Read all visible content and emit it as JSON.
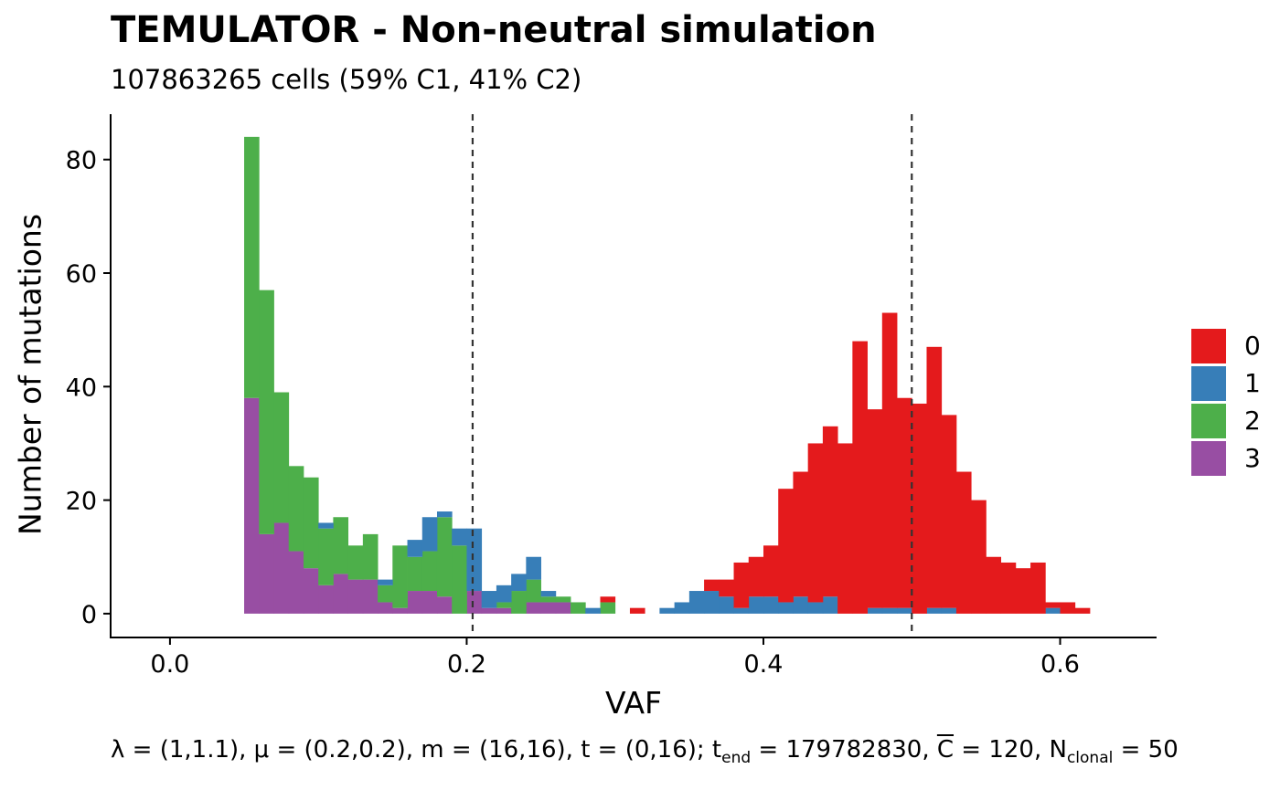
{
  "title": "TEMULATOR - Non-neutral simulation",
  "subtitle": "107863265 cells (59% C1, 41% C2)",
  "caption": {
    "part1": "λ = (1,1.1), μ = (0.2,0.2), m = (16,16), t = (0,16); t",
    "sub1": "end",
    "part2": " = 179782830, ",
    "cbar": "C",
    "part3": " = 120, N",
    "sub2": "clonal",
    "part4": " = 50"
  },
  "chart_data": {
    "type": "bar",
    "stacked": true,
    "xlabel": "VAF",
    "ylabel": "Number of mutations",
    "xlim": [
      -0.04,
      0.665
    ],
    "ylim": [
      -4.2,
      88
    ],
    "x_ticks": [
      0.0,
      0.2,
      0.4,
      0.6
    ],
    "x_tick_labels": [
      "0.0",
      "0.2",
      "0.4",
      "0.6"
    ],
    "y_ticks": [
      0,
      20,
      40,
      60,
      80
    ],
    "y_tick_labels": [
      "0",
      "20",
      "40",
      "60",
      "80"
    ],
    "bin_width": 0.01,
    "bin_starts": [
      0.05,
      0.06,
      0.07,
      0.08,
      0.09,
      0.1,
      0.11,
      0.12,
      0.13,
      0.14,
      0.15,
      0.16,
      0.17,
      0.18,
      0.19,
      0.2,
      0.21,
      0.22,
      0.23,
      0.24,
      0.25,
      0.26,
      0.27,
      0.28,
      0.29,
      0.3,
      0.31,
      0.32,
      0.33,
      0.34,
      0.35,
      0.36,
      0.37,
      0.38,
      0.39,
      0.4,
      0.41,
      0.42,
      0.43,
      0.44,
      0.45,
      0.46,
      0.47,
      0.48,
      0.49,
      0.5,
      0.51,
      0.52,
      0.53,
      0.54,
      0.55,
      0.56,
      0.57,
      0.58,
      0.59,
      0.6,
      0.61
    ],
    "series": [
      {
        "name": "3",
        "color": "#984EA3",
        "values": [
          38,
          14,
          16,
          11,
          8,
          5,
          7,
          6,
          6,
          2,
          1,
          4,
          4,
          3,
          0,
          4,
          1,
          1,
          0,
          2,
          2,
          2,
          0,
          0,
          0,
          0,
          0,
          0,
          0,
          0,
          0,
          0,
          0,
          0,
          0,
          0,
          0,
          0,
          0,
          0,
          0,
          0,
          0,
          0,
          0,
          0,
          0,
          0,
          0,
          0,
          0,
          0,
          0,
          0,
          0,
          0,
          0
        ]
      },
      {
        "name": "2",
        "color": "#4DAF4A",
        "values": [
          46,
          43,
          23,
          15,
          16,
          10,
          10,
          6,
          8,
          3,
          11,
          6,
          7,
          14,
          12,
          0,
          0,
          1,
          4,
          4,
          1,
          1,
          2,
          0,
          2,
          0,
          0,
          0,
          0,
          0,
          0,
          0,
          0,
          0,
          0,
          0,
          0,
          0,
          0,
          0,
          0,
          0,
          0,
          0,
          0,
          0,
          0,
          0,
          0,
          0,
          0,
          0,
          0,
          0,
          0,
          0,
          0
        ]
      },
      {
        "name": "1",
        "color": "#377EB8",
        "values": [
          0,
          0,
          0,
          0,
          0,
          1,
          0,
          0,
          0,
          1,
          0,
          3,
          6,
          1,
          3,
          11,
          3,
          3,
          3,
          4,
          1,
          0,
          0,
          1,
          0,
          0,
          0,
          0,
          1,
          2,
          4,
          4,
          3,
          1,
          3,
          3,
          2,
          3,
          2,
          3,
          0,
          0,
          1,
          1,
          1,
          0,
          1,
          1,
          0,
          0,
          0,
          0,
          0,
          0,
          1,
          0,
          0
        ]
      },
      {
        "name": "0",
        "color": "#E41A1C",
        "values": [
          0,
          0,
          0,
          0,
          0,
          0,
          0,
          0,
          0,
          0,
          0,
          0,
          0,
          0,
          0,
          0,
          0,
          0,
          0,
          0,
          0,
          0,
          0,
          0,
          1,
          0,
          1,
          0,
          0,
          0,
          0,
          2,
          3,
          8,
          7,
          9,
          20,
          22,
          28,
          30,
          30,
          48,
          35,
          52,
          37,
          37,
          46,
          34,
          25,
          20,
          10,
          9,
          8,
          9,
          1,
          2,
          1
        ]
      }
    ],
    "vlines": [
      0.204,
      0.5
    ],
    "legend_position": "right",
    "grid": false
  }
}
